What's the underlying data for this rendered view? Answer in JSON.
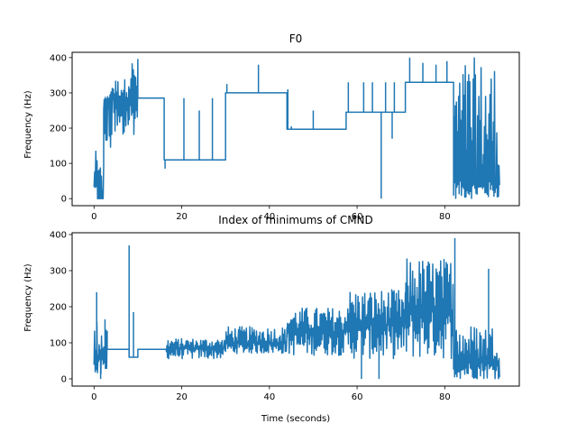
{
  "chart_data": [
    {
      "type": "line",
      "title": "F0",
      "xlabel": "",
      "ylabel": "Frequency (Hz)",
      "xlim": [
        -5,
        97
      ],
      "ylim": [
        -20,
        415
      ],
      "xticks": [
        0,
        20,
        40,
        60,
        80
      ],
      "yticks": [
        0,
        100,
        200,
        300,
        400
      ],
      "grid": false,
      "color": "#1f77b4",
      "segments": [
        {
          "x0": 0,
          "x1": 0.8,
          "y": 50,
          "noise": true,
          "lo": 0,
          "hi": 135
        },
        {
          "x0": 0.8,
          "x1": 2.2,
          "y": 0,
          "noise": true,
          "lo": 0,
          "hi": 110
        },
        {
          "x0": 2.2,
          "x1": 3.5,
          "y": 280,
          "noise": true,
          "lo": 100,
          "hi": 290
        },
        {
          "x0": 3.5,
          "x1": 7,
          "y": 285,
          "noise": true,
          "lo": 120,
          "hi": 340
        },
        {
          "x0": 7,
          "x1": 10,
          "y": 285,
          "noise": true,
          "lo": 180,
          "hi": 400
        },
        {
          "x0": 10,
          "x1": 16,
          "y": 285,
          "noise": false
        },
        {
          "x0": 16,
          "x1": 30,
          "y": 110,
          "noise": false
        },
        {
          "x0": 30,
          "x1": 44,
          "y": 300,
          "noise": false
        },
        {
          "x0": 44,
          "x1": 57.5,
          "y": 197,
          "noise": false
        },
        {
          "x0": 57.5,
          "x1": 71,
          "y": 245,
          "noise": false
        },
        {
          "x0": 71,
          "x1": 82,
          "y": 330,
          "noise": false
        },
        {
          "x0": 82,
          "x1": 92.5,
          "y": 50,
          "noise": true,
          "lo": 0,
          "hi": 400
        }
      ],
      "spikes": [
        {
          "x": 16.2,
          "y": 85
        },
        {
          "x": 20.5,
          "y": 285
        },
        {
          "x": 24,
          "y": 250
        },
        {
          "x": 27,
          "y": 285
        },
        {
          "x": 30.3,
          "y": 325
        },
        {
          "x": 37.5,
          "y": 380
        },
        {
          "x": 44.2,
          "y": 310
        },
        {
          "x": 45,
          "y": 205
        },
        {
          "x": 50,
          "y": 250
        },
        {
          "x": 58,
          "y": 330
        },
        {
          "x": 61.5,
          "y": 330
        },
        {
          "x": 63.5,
          "y": 330
        },
        {
          "x": 65.5,
          "y": 0
        },
        {
          "x": 66.5,
          "y": 330
        },
        {
          "x": 68,
          "y": 170
        },
        {
          "x": 68.5,
          "y": 330
        },
        {
          "x": 72,
          "y": 400
        },
        {
          "x": 75,
          "y": 385
        },
        {
          "x": 78,
          "y": 380
        },
        {
          "x": 80.5,
          "y": 390
        }
      ]
    },
    {
      "type": "line",
      "title": "Index of minimums of CMND",
      "xlabel": "Time (seconds)",
      "ylabel": "Frequency (Hz)",
      "xlim": [
        -5,
        97
      ],
      "ylim": [
        -20,
        405
      ],
      "xticks": [
        0,
        20,
        40,
        60,
        80
      ],
      "yticks": [
        0,
        100,
        200,
        300,
        400
      ],
      "grid": false,
      "color": "#1f77b4",
      "segments": [
        {
          "x0": 0,
          "x1": 3,
          "y": 55,
          "noise": true,
          "lo": 0,
          "hi": 165
        },
        {
          "x0": 3,
          "x1": 8,
          "y": 82,
          "noise": false
        },
        {
          "x0": 8,
          "x1": 10,
          "y": 60,
          "noise": false
        },
        {
          "x0": 10,
          "x1": 16.5,
          "y": 82,
          "noise": false
        },
        {
          "x0": 16.5,
          "x1": 30,
          "y": 85,
          "noise": true,
          "lo": 55,
          "hi": 112
        },
        {
          "x0": 30,
          "x1": 44,
          "y": 100,
          "noise": true,
          "lo": 70,
          "hi": 145
        },
        {
          "x0": 44,
          "x1": 57.5,
          "y": 130,
          "noise": true,
          "lo": 65,
          "hi": 198
        },
        {
          "x0": 57.5,
          "x1": 71,
          "y": 150,
          "noise": true,
          "lo": 55,
          "hi": 248
        },
        {
          "x0": 71,
          "x1": 82,
          "y": 190,
          "noise": true,
          "lo": 55,
          "hi": 335
        },
        {
          "x0": 82,
          "x1": 92.5,
          "y": 50,
          "noise": true,
          "lo": 0,
          "hi": 150
        }
      ],
      "spikes": [
        {
          "x": 0.6,
          "y": 240
        },
        {
          "x": 1.5,
          "y": 0
        },
        {
          "x": 2.5,
          "y": 165
        },
        {
          "x": 8,
          "y": 370
        },
        {
          "x": 9,
          "y": 185
        },
        {
          "x": 61,
          "y": 0
        },
        {
          "x": 65,
          "y": 0
        },
        {
          "x": 82.3,
          "y": 390
        },
        {
          "x": 90,
          "y": 305
        }
      ]
    }
  ]
}
